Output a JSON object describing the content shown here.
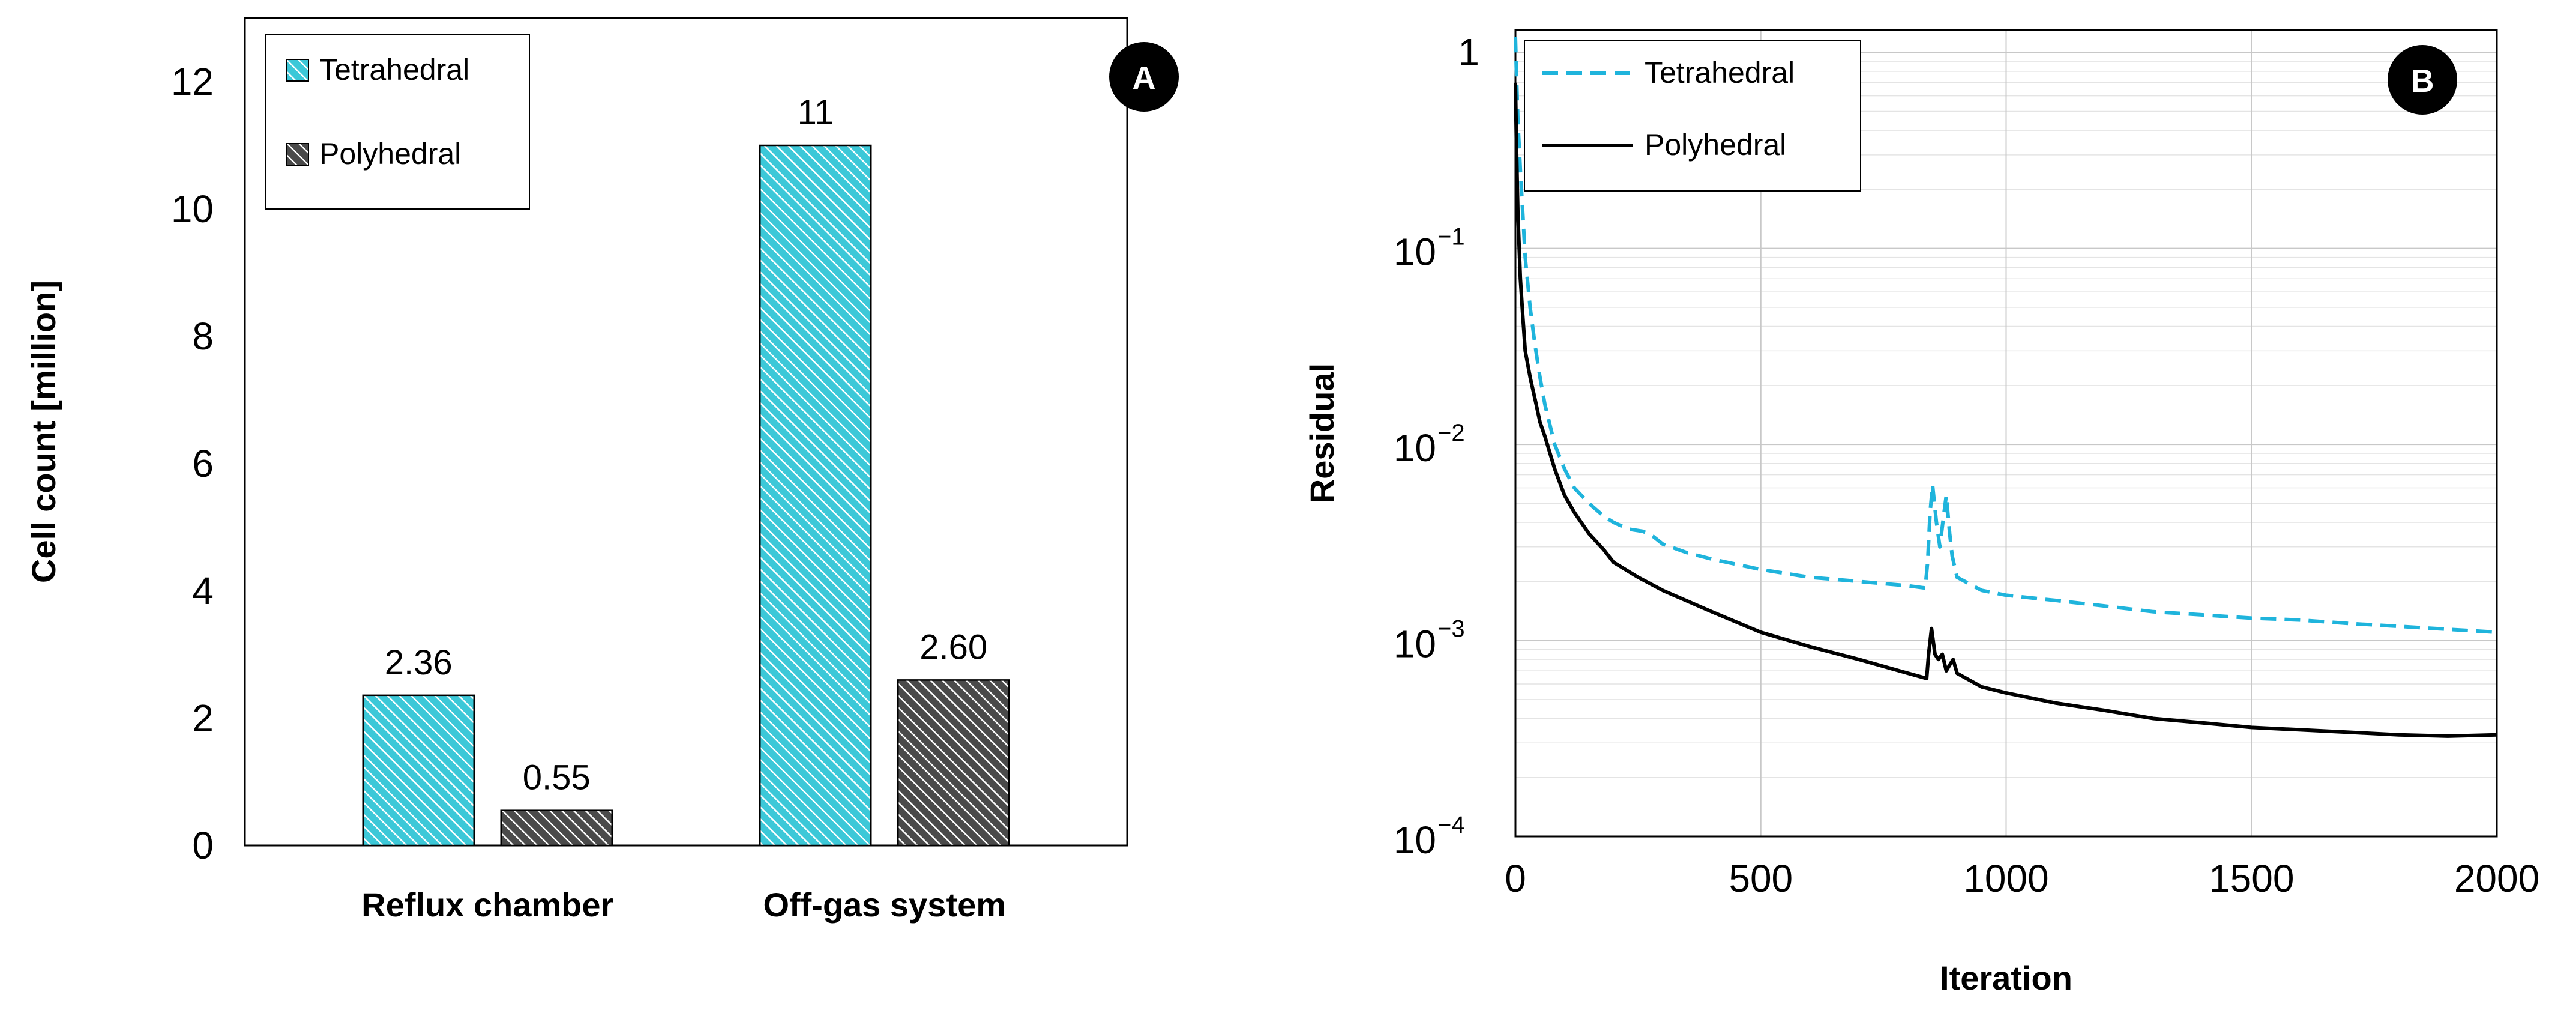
{
  "chart_data": [
    {
      "type": "bar",
      "panel_label": "A",
      "categories": [
        "Reflux chamber",
        "Off-gas system"
      ],
      "series": [
        {
          "name": "Tetrahedral",
          "values": [
            2.36,
            11
          ],
          "labels": [
            "2.36",
            "11"
          ],
          "color": "#3cc8d8"
        },
        {
          "name": "Polyhedral",
          "values": [
            0.55,
            2.6
          ],
          "labels": [
            "0.55",
            "2.60"
          ],
          "color": "#4a4a4a"
        }
      ],
      "ylabel": "Cell count [million]",
      "xlabel": "",
      "ylim": [
        0,
        13
      ],
      "yticks": [
        0,
        2,
        4,
        6,
        8,
        10,
        12
      ],
      "ytick_labels": [
        "0",
        "2",
        "4",
        "6",
        "8",
        "10",
        "12"
      ],
      "legend": "top-left",
      "grid": false
    },
    {
      "type": "line",
      "panel_label": "B",
      "xlabel": "Iteration",
      "ylabel": "Residual",
      "yscale": "log",
      "xlim": [
        0,
        2000
      ],
      "ylim": [
        0.0001,
        1.3
      ],
      "xticks": [
        0,
        500,
        1000,
        1500,
        2000
      ],
      "xtick_labels": [
        "0",
        "500",
        "1000",
        "1500",
        "2000"
      ],
      "ytick_labels": [
        {
          "base": "1",
          "exp": ""
        },
        {
          "base": "10",
          "exp": "−1"
        },
        {
          "base": "10",
          "exp": "−2"
        },
        {
          "base": "10",
          "exp": "−3"
        },
        {
          "base": "10",
          "exp": "−4"
        }
      ],
      "grid": true,
      "legend": "top-left",
      "series": [
        {
          "name": "Tetrahedral",
          "style": "dashed",
          "color": "#1fb4dc",
          "x": [
            0,
            2,
            5,
            10,
            15,
            20,
            30,
            40,
            50,
            60,
            80,
            100,
            120,
            150,
            180,
            200,
            230,
            260,
            280,
            300,
            350,
            400,
            500,
            600,
            700,
            800,
            835,
            840,
            845,
            850,
            858,
            865,
            872,
            878,
            885,
            890,
            900,
            950,
            1000,
            1100,
            1200,
            1300,
            1400,
            1500,
            1600,
            1700,
            1800,
            1900,
            2000
          ],
          "y": [
            1.2,
            0.8,
            0.45,
            0.25,
            0.15,
            0.09,
            0.05,
            0.032,
            0.022,
            0.016,
            0.01,
            0.0075,
            0.006,
            0.005,
            0.0043,
            0.004,
            0.0037,
            0.0036,
            0.0034,
            0.0031,
            0.0028,
            0.0026,
            0.0023,
            0.0021,
            0.002,
            0.0019,
            0.00185,
            0.0025,
            0.0045,
            0.0062,
            0.004,
            0.003,
            0.0042,
            0.0055,
            0.0035,
            0.0027,
            0.0021,
            0.0018,
            0.0017,
            0.0016,
            0.0015,
            0.0014,
            0.00135,
            0.0013,
            0.00127,
            0.00122,
            0.00118,
            0.00114,
            0.0011
          ]
        },
        {
          "name": "Polyhedral",
          "style": "solid",
          "color": "#000000",
          "x": [
            0,
            2,
            5,
            10,
            15,
            20,
            30,
            40,
            50,
            60,
            80,
            100,
            120,
            150,
            180,
            200,
            250,
            300,
            400,
            500,
            600,
            700,
            800,
            838,
            842,
            848,
            855,
            862,
            870,
            878,
            885,
            892,
            900,
            950,
            1000,
            1100,
            1200,
            1300,
            1400,
            1500,
            1600,
            1700,
            1800,
            1900,
            2000
          ],
          "y": [
            0.7,
            0.35,
            0.15,
            0.07,
            0.045,
            0.03,
            0.022,
            0.017,
            0.013,
            0.011,
            0.0075,
            0.0055,
            0.0045,
            0.0035,
            0.0029,
            0.0025,
            0.0021,
            0.0018,
            0.0014,
            0.0011,
            0.00093,
            0.0008,
            0.00068,
            0.00064,
            0.00085,
            0.00115,
            0.00085,
            0.0008,
            0.00085,
            0.0007,
            0.00075,
            0.0008,
            0.00068,
            0.00058,
            0.00054,
            0.00048,
            0.00044,
            0.0004,
            0.00038,
            0.00036,
            0.00035,
            0.00034,
            0.00033,
            0.000325,
            0.00033
          ]
        }
      ]
    }
  ]
}
